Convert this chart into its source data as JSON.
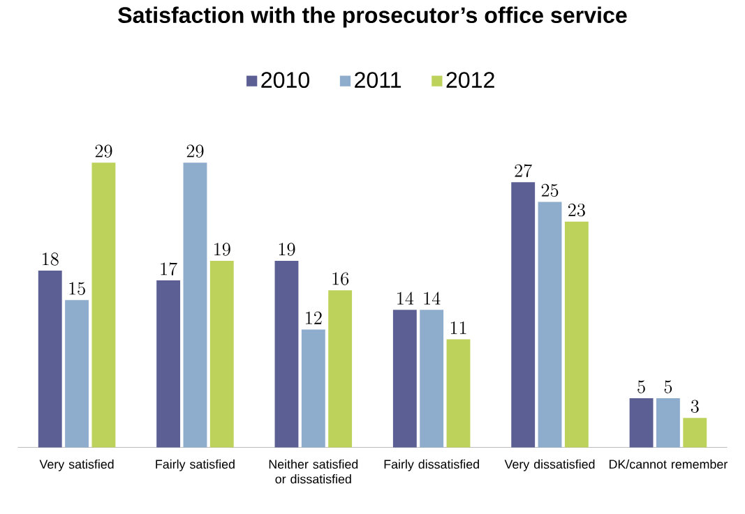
{
  "chart_data": {
    "type": "bar",
    "title": "Satisfaction with the prosecutor’s office service",
    "categories": [
      "Very satisfied",
      "Fairly satisfied",
      "Neither satisfied or dissatisfied",
      "Fairly dissatisfied",
      "Very dissatisfied",
      "DK/cannot remember"
    ],
    "series": [
      {
        "name": "2010",
        "color": "#5b5f94",
        "values": [
          18,
          17,
          19,
          14,
          27,
          5
        ]
      },
      {
        "name": "2011",
        "color": "#8eaccc",
        "values": [
          15,
          29,
          12,
          14,
          25,
          5
        ]
      },
      {
        "name": "2012",
        "color": "#bcd25a",
        "values": [
          29,
          19,
          16,
          11,
          23,
          3
        ]
      }
    ],
    "data_labels": true,
    "legend": "top",
    "grid": false
  }
}
